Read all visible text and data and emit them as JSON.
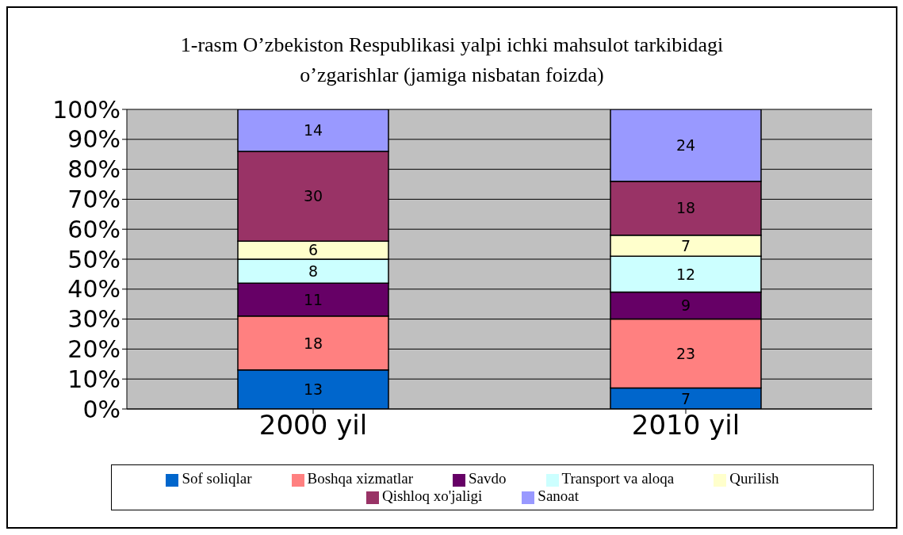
{
  "chart_data": {
    "type": "bar",
    "title": "1-rasm O’zbekiston Respublikasi yalpi ichki mahsulot tarkibidagi o’zgarishlar (jamiga nisbatan foizda)",
    "categories": [
      "2000 yil",
      "2010 yil"
    ],
    "stacked": true,
    "data_labels": true,
    "grid": "y",
    "legend": "bottom",
    "ylim": [
      0,
      100
    ],
    "yticks": [
      {
        "value": 0,
        "label": "0%"
      },
      {
        "value": 10,
        "label": "10%"
      },
      {
        "value": 20,
        "label": "20%"
      },
      {
        "value": 30,
        "label": "30%"
      },
      {
        "value": 40,
        "label": "40%"
      },
      {
        "value": 50,
        "label": "50%"
      },
      {
        "value": 60,
        "label": "60%"
      },
      {
        "value": 70,
        "label": "70%"
      },
      {
        "value": 80,
        "label": "80%"
      },
      {
        "value": 90,
        "label": "90%"
      },
      {
        "value": 100,
        "label": "100%"
      }
    ],
    "series": [
      {
        "name": "Sof soliqlar",
        "color": "#0066cc",
        "values": [
          13,
          7
        ]
      },
      {
        "name": "Boshqa xizmatlar",
        "color": "#ff8080",
        "values": [
          18,
          23
        ]
      },
      {
        "name": "Savdo",
        "color": "#660066",
        "values": [
          11,
          9
        ]
      },
      {
        "name": "Transport va aloqa",
        "color": "#ccffff",
        "values": [
          8,
          12
        ]
      },
      {
        "name": "Qurilish",
        "color": "#ffffcc",
        "values": [
          6,
          7
        ]
      },
      {
        "name": "Qishloq xo'jaligi",
        "color": "#993366",
        "values": [
          30,
          18
        ]
      },
      {
        "name": "Sanoat",
        "color": "#9999ff",
        "values": [
          14,
          24
        ]
      }
    ]
  }
}
